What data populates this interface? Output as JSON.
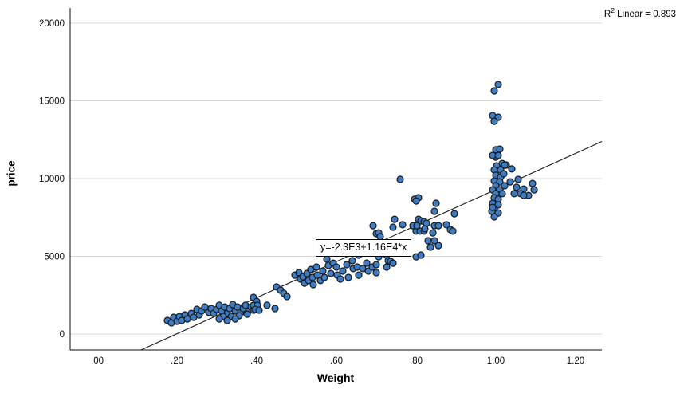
{
  "annotations": {
    "r2_base": "R",
    "r2_sup": "2",
    "r2_rest": " Linear = 0.893"
  },
  "colors": {
    "background": "#ffffff",
    "point_fill": "#3E7DC3",
    "point_stroke": "#15181c",
    "regression_line": "#1c1c1c",
    "grid": "#d8d8d8",
    "axis": "#3a3a3a",
    "text": "#000000"
  },
  "chart_data": {
    "type": "scatter",
    "title": "",
    "xlabel": "Weight",
    "ylabel": "price",
    "xlim": [
      -0.068,
      1.266
    ],
    "ylim": [
      -1025,
      20975
    ],
    "grid": "horizontal",
    "legend": "none",
    "x_ticks": [
      {
        "value": 0.0,
        "label": ".00"
      },
      {
        "value": 0.2,
        "label": ".20"
      },
      {
        "value": 0.4,
        "label": ".40"
      },
      {
        "value": 0.6,
        "label": ".60"
      },
      {
        "value": 0.8,
        "label": ".80"
      },
      {
        "value": 1.0,
        "label": "1.00"
      },
      {
        "value": 1.2,
        "label": "1.20"
      }
    ],
    "y_ticks": [
      {
        "value": 0,
        "label": "0"
      },
      {
        "value": 5000,
        "label": "5000"
      },
      {
        "value": 10000,
        "label": "10000"
      },
      {
        "value": 15000,
        "label": "15000"
      },
      {
        "value": 20000,
        "label": "20000"
      }
    ],
    "regression": {
      "intercept": -2300,
      "slope": 11600,
      "equation_label": "y=-2.3E3+1.16E4*x",
      "r_squared": 0.893
    },
    "points": [
      [
        0.176,
        870
      ],
      [
        0.186,
        720
      ],
      [
        0.192,
        1080
      ],
      [
        0.2,
        820
      ],
      [
        0.206,
        1130
      ],
      [
        0.212,
        870
      ],
      [
        0.22,
        1230
      ],
      [
        0.226,
        970
      ],
      [
        0.236,
        1330
      ],
      [
        0.242,
        1080
      ],
      [
        0.25,
        1590
      ],
      [
        0.256,
        1230
      ],
      [
        0.262,
        1490
      ],
      [
        0.27,
        1740
      ],
      [
        0.28,
        1390
      ],
      [
        0.286,
        1640
      ],
      [
        0.292,
        1330
      ],
      [
        0.3,
        1590
      ],
      [
        0.306,
        1850
      ],
      [
        0.312,
        1490
      ],
      [
        0.32,
        1740
      ],
      [
        0.326,
        1330
      ],
      [
        0.332,
        1640
      ],
      [
        0.34,
        1900
      ],
      [
        0.346,
        1490
      ],
      [
        0.352,
        1740
      ],
      [
        0.36,
        1390
      ],
      [
        0.366,
        1640
      ],
      [
        0.372,
        1850
      ],
      [
        0.38,
        1490
      ],
      [
        0.386,
        1740
      ],
      [
        0.316,
        1130
      ],
      [
        0.336,
        1130
      ],
      [
        0.356,
        1180
      ],
      [
        0.376,
        1280
      ],
      [
        0.392,
        1540
      ],
      [
        0.306,
        970
      ],
      [
        0.326,
        870
      ],
      [
        0.346,
        970
      ],
      [
        0.392,
        2360
      ],
      [
        0.4,
        2100
      ],
      [
        0.392,
        1850
      ],
      [
        0.402,
        1850
      ],
      [
        0.396,
        1590
      ],
      [
        0.406,
        1540
      ],
      [
        0.426,
        1850
      ],
      [
        0.446,
        1640
      ],
      [
        0.45,
        3030
      ],
      [
        0.46,
        2820
      ],
      [
        0.468,
        2620
      ],
      [
        0.476,
        2410
      ],
      [
        0.496,
        3790
      ],
      [
        0.506,
        3950
      ],
      [
        0.51,
        3540
      ],
      [
        0.516,
        3690
      ],
      [
        0.52,
        3280
      ],
      [
        0.526,
        3900
      ],
      [
        0.53,
        3440
      ],
      [
        0.536,
        4150
      ],
      [
        0.54,
        3640
      ],
      [
        0.542,
        3180
      ],
      [
        0.55,
        4310
      ],
      [
        0.552,
        3790
      ],
      [
        0.56,
        3440
      ],
      [
        0.566,
        4050
      ],
      [
        0.57,
        3640
      ],
      [
        0.576,
        4820
      ],
      [
        0.58,
        4410
      ],
      [
        0.586,
        3900
      ],
      [
        0.592,
        4560
      ],
      [
        0.6,
        4310
      ],
      [
        0.602,
        3790
      ],
      [
        0.61,
        3540
      ],
      [
        0.616,
        4050
      ],
      [
        0.626,
        4460
      ],
      [
        0.63,
        3640
      ],
      [
        0.64,
        4720
      ],
      [
        0.642,
        4210
      ],
      [
        0.652,
        4310
      ],
      [
        0.656,
        3790
      ],
      [
        0.676,
        4560
      ],
      [
        0.68,
        4050
      ],
      [
        0.69,
        4310
      ],
      [
        0.666,
        4210
      ],
      [
        0.656,
        5080
      ],
      [
        0.7,
        4460
      ],
      [
        0.7,
        3950
      ],
      [
        0.706,
        4970
      ],
      [
        0.726,
        5080
      ],
      [
        0.73,
        4720
      ],
      [
        0.736,
        4670
      ],
      [
        0.742,
        4560
      ],
      [
        0.726,
        4310
      ],
      [
        0.692,
        6970
      ],
      [
        0.7,
        6460
      ],
      [
        0.706,
        6510
      ],
      [
        0.71,
        6260
      ],
      [
        0.742,
        6870
      ],
      [
        0.746,
        7380
      ],
      [
        0.766,
        7030
      ],
      [
        0.76,
        9950
      ],
      [
        0.796,
        8670
      ],
      [
        0.806,
        8770
      ],
      [
        0.792,
        6970
      ],
      [
        0.8,
        6620
      ],
      [
        0.802,
        6970
      ],
      [
        0.806,
        7380
      ],
      [
        0.81,
        6620
      ],
      [
        0.812,
        7280
      ],
      [
        0.82,
        7230
      ],
      [
        0.82,
        6620
      ],
      [
        0.826,
        7130
      ],
      [
        0.83,
        6000
      ],
      [
        0.836,
        5590
      ],
      [
        0.842,
        6510
      ],
      [
        0.846,
        6970
      ],
      [
        0.846,
        6000
      ],
      [
        0.85,
        8410
      ],
      [
        0.856,
        6970
      ],
      [
        0.856,
        5690
      ],
      [
        0.886,
        6720
      ],
      [
        0.892,
        6620
      ],
      [
        0.896,
        7740
      ],
      [
        0.8,
        8560
      ],
      [
        0.846,
        7900
      ],
      [
        0.8,
        4970
      ],
      [
        0.812,
        5080
      ],
      [
        0.822,
        6770
      ],
      [
        0.876,
        7030
      ],
      [
        1.0,
        11380
      ],
      [
        1.016,
        10970
      ],
      [
        1.026,
        10870
      ],
      [
        1.002,
        10820
      ],
      [
        0.996,
        10560
      ],
      [
        1.012,
        10560
      ],
      [
        1.04,
        10620
      ],
      [
        1.0,
        10210
      ],
      [
        1.012,
        10100
      ],
      [
        0.996,
        9850
      ],
      [
        1.01,
        9790
      ],
      [
        1.0,
        9540
      ],
      [
        0.992,
        9280
      ],
      [
        1.01,
        9280
      ],
      [
        1.0,
        9030
      ],
      [
        1.016,
        9030
      ],
      [
        0.996,
        8770
      ],
      [
        1.006,
        8670
      ],
      [
        0.992,
        8410
      ],
      [
        1.006,
        8310
      ],
      [
        0.996,
        8050
      ],
      [
        1.006,
        7790
      ],
      [
        0.996,
        7540
      ],
      [
        0.99,
        7900
      ],
      [
        0.992,
        8150
      ],
      [
        1.006,
        16050
      ],
      [
        0.996,
        15640
      ],
      [
        0.992,
        14050
      ],
      [
        1.006,
        13950
      ],
      [
        0.996,
        13690
      ],
      [
        1.0,
        11850
      ],
      [
        1.01,
        11900
      ],
      [
        0.992,
        11490
      ],
      [
        1.006,
        11490
      ],
      [
        1.022,
        10870
      ],
      [
        1.02,
        10310
      ],
      [
        1.056,
        9950
      ],
      [
        1.036,
        9790
      ],
      [
        1.022,
        9540
      ],
      [
        1.052,
        9440
      ],
      [
        1.07,
        9330
      ],
      [
        1.092,
        9690
      ],
      [
        1.096,
        9280
      ],
      [
        1.046,
        9030
      ],
      [
        1.062,
        9030
      ],
      [
        1.082,
        8920
      ],
      [
        1.07,
        8920
      ]
    ]
  }
}
